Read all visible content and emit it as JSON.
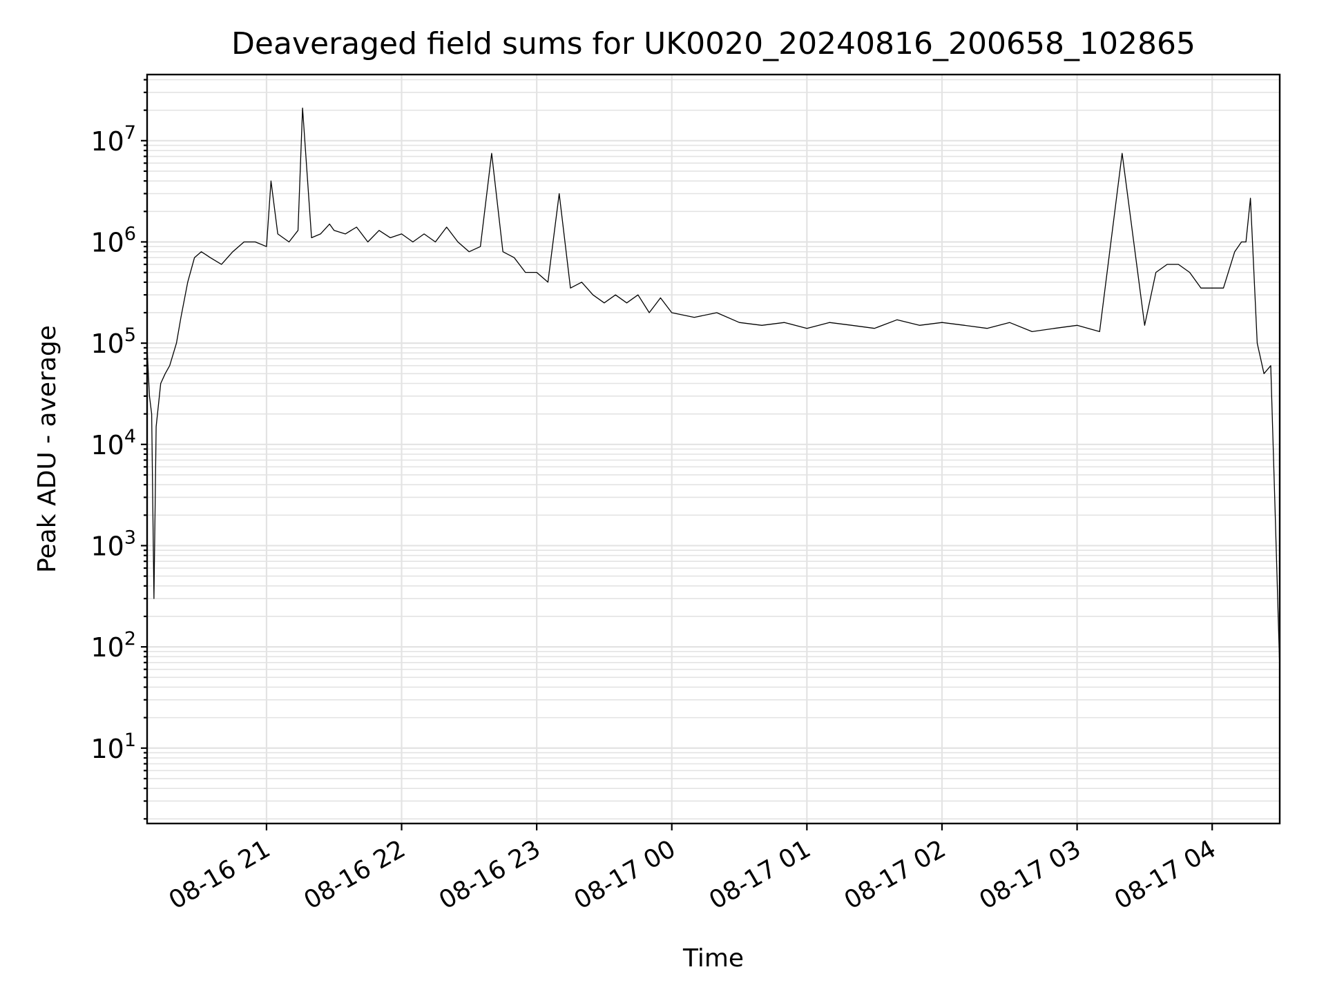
{
  "chart_data": {
    "type": "line",
    "title": "Deaveraged field sums for UK0020_20240816_200658_102865",
    "xlabel": "Time",
    "ylabel": "Peak ADU - average",
    "yscale": "log",
    "grid": "on (major and minor)",
    "line_color": "#000000",
    "xlim": [
      "2024-08-16 20:06:58",
      "2024-08-17 04:30:00"
    ],
    "ylim": [
      1.8,
      45000000
    ],
    "x_ticks": [
      {
        "value": "2024-08-16 21:00",
        "label": "08-16 21"
      },
      {
        "value": "2024-08-16 22:00",
        "label": "08-16 22"
      },
      {
        "value": "2024-08-16 23:00",
        "label": "08-16 23"
      },
      {
        "value": "2024-08-17 00:00",
        "label": "08-17 00"
      },
      {
        "value": "2024-08-17 01:00",
        "label": "08-17 01"
      },
      {
        "value": "2024-08-17 02:00",
        "label": "08-17 02"
      },
      {
        "value": "2024-08-17 03:00",
        "label": "08-17 03"
      },
      {
        "value": "2024-08-17 04:00",
        "label": "08-17 04"
      }
    ],
    "y_ticks": [
      {
        "value": 10,
        "base": "10",
        "exp": "1"
      },
      {
        "value": 100,
        "base": "10",
        "exp": "2"
      },
      {
        "value": 1000,
        "base": "10",
        "exp": "3"
      },
      {
        "value": 10000,
        "base": "10",
        "exp": "4"
      },
      {
        "value": 100000,
        "base": "10",
        "exp": "5"
      },
      {
        "value": 1000000,
        "base": "10",
        "exp": "6"
      },
      {
        "value": 10000000,
        "base": "10",
        "exp": "7"
      }
    ],
    "series": [
      {
        "x": [
          "2024-08-16 20:06:58",
          "2024-08-16 20:08:00",
          "2024-08-16 20:09:00",
          "2024-08-16 20:10:00",
          "2024-08-16 20:11:00",
          "2024-08-16 20:13:00",
          "2024-08-16 20:15:00",
          "2024-08-16 20:17:00",
          "2024-08-16 20:20:00",
          "2024-08-16 20:22:00",
          "2024-08-16 20:25:00",
          "2024-08-16 20:28:00",
          "2024-08-16 20:31:00",
          "2024-08-16 20:33:00",
          "2024-08-16 20:35:00",
          "2024-08-16 20:40:00",
          "2024-08-16 20:45:00",
          "2024-08-16 20:50:00",
          "2024-08-16 20:55:00",
          "2024-08-16 21:00:00",
          "2024-08-16 21:02:00",
          "2024-08-16 21:05:00",
          "2024-08-16 21:10:00",
          "2024-08-16 21:14:00",
          "2024-08-16 21:16:00",
          "2024-08-16 21:20:00",
          "2024-08-16 21:24:00",
          "2024-08-16 21:28:00",
          "2024-08-16 21:30:00",
          "2024-08-16 21:35:00",
          "2024-08-16 21:40:00",
          "2024-08-16 21:45:00",
          "2024-08-16 21:50:00",
          "2024-08-16 21:55:00",
          "2024-08-16 22:00:00",
          "2024-08-16 22:05:00",
          "2024-08-16 22:10:00",
          "2024-08-16 22:15:00",
          "2024-08-16 22:20:00",
          "2024-08-16 22:25:00",
          "2024-08-16 22:30:00",
          "2024-08-16 22:35:00",
          "2024-08-16 22:40:00",
          "2024-08-16 22:45:00",
          "2024-08-16 22:50:00",
          "2024-08-16 22:55:00",
          "2024-08-16 23:00:00",
          "2024-08-16 23:05:00",
          "2024-08-16 23:10:00",
          "2024-08-16 23:15:00",
          "2024-08-16 23:20:00",
          "2024-08-16 23:25:00",
          "2024-08-16 23:30:00",
          "2024-08-16 23:35:00",
          "2024-08-16 23:40:00",
          "2024-08-16 23:45:00",
          "2024-08-16 23:50:00",
          "2024-08-16 23:55:00",
          "2024-08-17 00:00:00",
          "2024-08-17 00:10:00",
          "2024-08-17 00:20:00",
          "2024-08-17 00:30:00",
          "2024-08-17 00:40:00",
          "2024-08-17 00:50:00",
          "2024-08-17 01:00:00",
          "2024-08-17 01:10:00",
          "2024-08-17 01:20:00",
          "2024-08-17 01:30:00",
          "2024-08-17 01:40:00",
          "2024-08-17 01:50:00",
          "2024-08-17 02:00:00",
          "2024-08-17 02:10:00",
          "2024-08-17 02:20:00",
          "2024-08-17 02:30:00",
          "2024-08-17 02:40:00",
          "2024-08-17 02:50:00",
          "2024-08-17 03:00:00",
          "2024-08-17 03:10:00",
          "2024-08-17 03:20:00",
          "2024-08-17 03:30:00",
          "2024-08-17 03:35:00",
          "2024-08-17 03:40:00",
          "2024-08-17 03:45:00",
          "2024-08-17 03:50:00",
          "2024-08-17 03:55:00",
          "2024-08-17 04:00:00",
          "2024-08-17 04:05:00",
          "2024-08-17 04:10:00",
          "2024-08-17 04:13:00",
          "2024-08-17 04:15:00",
          "2024-08-17 04:17:00",
          "2024-08-17 04:20:00",
          "2024-08-17 04:23:00",
          "2024-08-17 04:26:00",
          "2024-08-17 04:28:00",
          "2024-08-17 04:30:00"
        ],
        "y": [
          90000,
          30000,
          20000,
          300,
          15000,
          40000,
          50000,
          60000,
          100000,
          180000,
          400000,
          700000,
          800000,
          750000,
          700000,
          600000,
          800000,
          1000000,
          1000000,
          900000,
          4000000,
          1200000,
          1000000,
          1300000,
          21000000,
          1100000,
          1200000,
          1500000,
          1300000,
          1200000,
          1400000,
          1000000,
          1300000,
          1100000,
          1200000,
          1000000,
          1200000,
          1000000,
          1400000,
          1000000,
          800000,
          900000,
          7500000,
          800000,
          700000,
          500000,
          500000,
          400000,
          3000000,
          350000,
          400000,
          300000,
          250000,
          300000,
          250000,
          300000,
          200000,
          280000,
          200000,
          180000,
          200000,
          160000,
          150000,
          160000,
          140000,
          160000,
          150000,
          140000,
          170000,
          150000,
          160000,
          150000,
          140000,
          160000,
          130000,
          140000,
          150000,
          130000,
          7500000,
          150000,
          500000,
          600000,
          600000,
          500000,
          350000,
          350000,
          350000,
          800000,
          1000000,
          1000000,
          2700000,
          100000,
          50000,
          60000,
          2000,
          60
        ]
      }
    ]
  }
}
